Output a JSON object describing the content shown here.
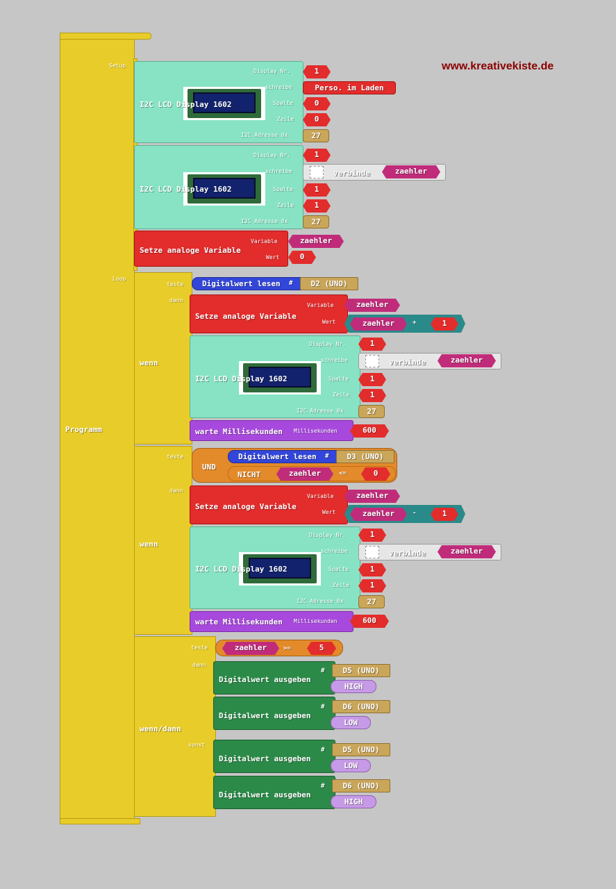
{
  "watermark": "www.kreativekiste.de",
  "program_label": "Programm",
  "setup_label": "Setup",
  "loop_label": "Loop",
  "lcd1": {
    "title": "I2C LCD Display 1602",
    "display_label": "Display Nr.",
    "display": "1",
    "write_label": "schreibe",
    "write": "Perso. im Laden",
    "col_label": "Spalte",
    "col": "0",
    "row_label": "Zeile",
    "row": "0",
    "addr_label": "I2C Adresse 0x",
    "addr": "27"
  },
  "lcd2": {
    "title": "I2C LCD Display 1602",
    "display_label": "Display Nr.",
    "display": "1",
    "write_label": "schreibe",
    "join": "verbinde",
    "var": "zaehler",
    "col_label": "Spalte",
    "col": "1",
    "row_label": "Zeile",
    "row": "1",
    "addr_label": "I2C Adresse 0x",
    "addr": "27"
  },
  "setvar0": {
    "title": "Setze analoge Variable",
    "var_label": "Variable",
    "var": "zaehler",
    "val_label": "Wert",
    "val": "0"
  },
  "if1": {
    "label": "wenn",
    "test_label": "teste",
    "then_label": "dann",
    "read": "Digitalwert lesen",
    "hash": "#",
    "pin": "D2 (UNO)",
    "set": {
      "title": "Setze analoge Variable",
      "var_label": "Variable",
      "var": "zaehler",
      "val_label": "Wert",
      "a": "zaehler",
      "op": "+",
      "b": "1"
    },
    "lcd": {
      "title": "I2C LCD Display 1602",
      "display_label": "Display Nr.",
      "display": "1",
      "write_label": "schreibe",
      "join": "verbinde",
      "var": "zaehler",
      "col_label": "Spalte",
      "col": "1",
      "row_label": "Zeile",
      "row": "1",
      "addr_label": "I2C Adresse 0x",
      "addr": "27"
    },
    "wait": {
      "title": "warte Millisekunden",
      "label": "Millisekunden",
      "val": "600"
    }
  },
  "if2": {
    "label": "wenn",
    "test_label": "teste",
    "then_label": "dann",
    "and": "UND",
    "read": "Digitalwert lesen",
    "hash": "#",
    "pin": "D3 (UNO)",
    "not": "NICHT",
    "cmp_a": "zaehler",
    "cmp_op": "<=",
    "cmp_b": "0",
    "set": {
      "title": "Setze analoge Variable",
      "var_label": "Variable",
      "var": "zaehler",
      "val_label": "Wert",
      "a": "zaehler",
      "op": "-",
      "b": "1"
    },
    "lcd": {
      "title": "I2C LCD Display 1602",
      "display_label": "Display Nr.",
      "display": "1",
      "write_label": "schreibe",
      "join": "verbinde",
      "var": "zaehler",
      "col_label": "Spalte",
      "col": "1",
      "row_label": "Zeile",
      "row": "1",
      "addr_label": "I2C Adresse 0x",
      "addr": "27"
    },
    "wait": {
      "title": "warte Millisekunden",
      "label": "Millisekunden",
      "val": "600"
    }
  },
  "if3": {
    "label": "wenn/dann",
    "test_label": "teste",
    "then_label": "dann",
    "else_label": "sonst",
    "cmp_a": "zaehler",
    "cmp_op": ">=",
    "cmp_b": "5",
    "out_title": "Digitalwert ausgeben",
    "hash": "#",
    "outs": [
      {
        "pin": "D5 (UNO)",
        "val": "HIGH"
      },
      {
        "pin": "D6 (UNO)",
        "val": "LOW"
      },
      {
        "pin": "D5 (UNO)",
        "val": "LOW"
      },
      {
        "pin": "D6 (UNO)",
        "val": "HIGH"
      }
    ]
  }
}
